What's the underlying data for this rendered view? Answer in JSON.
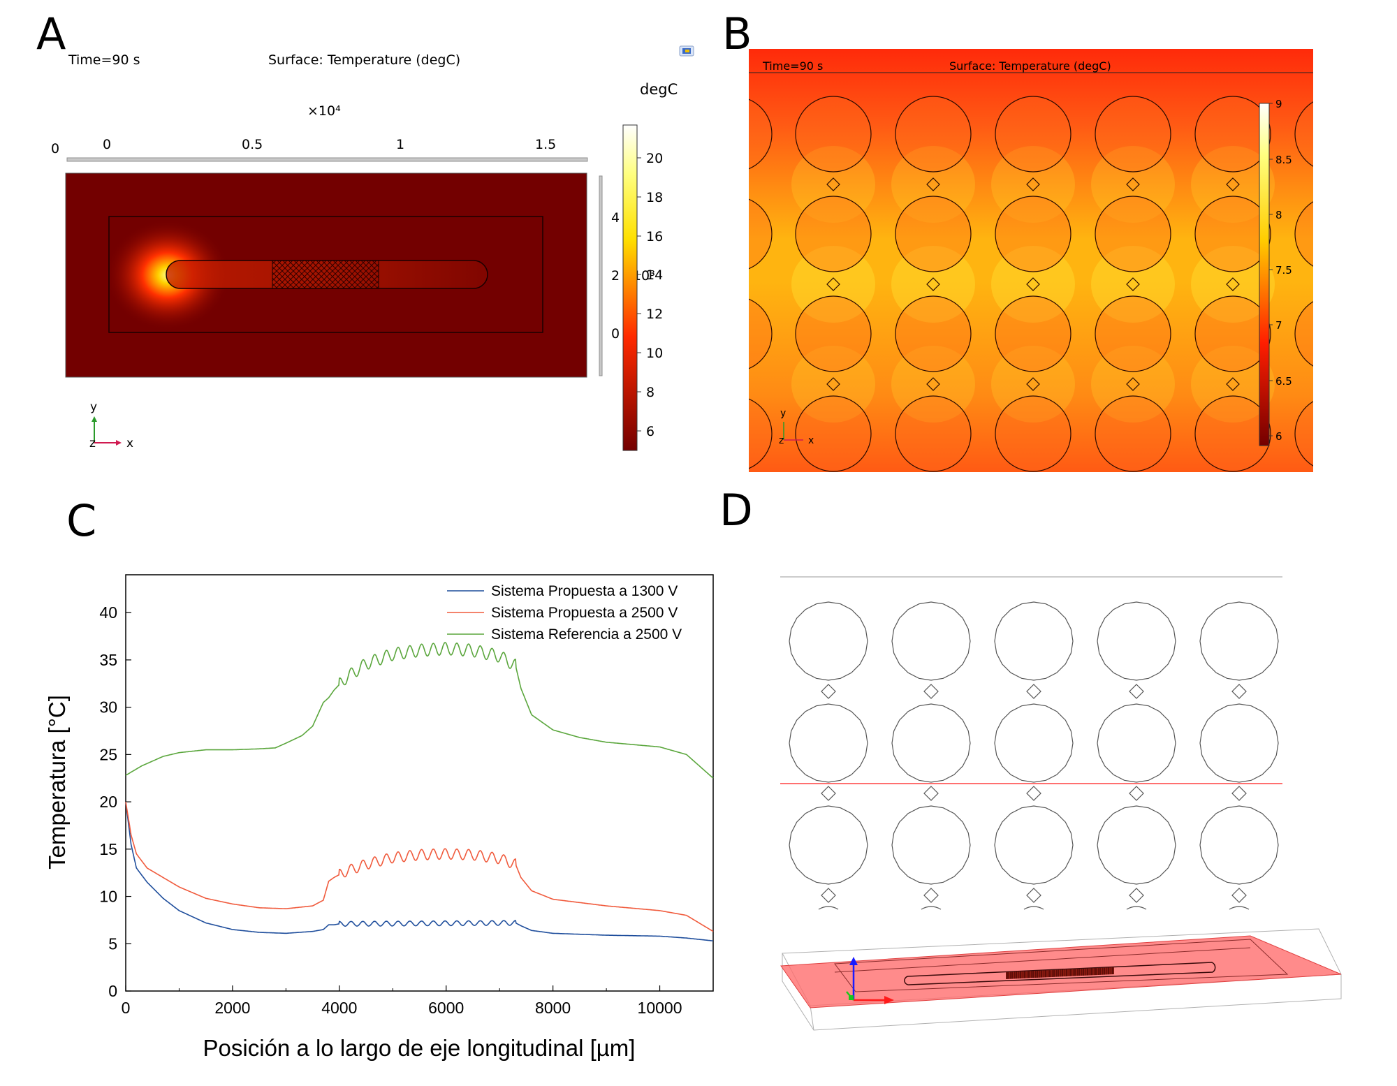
{
  "panels": {
    "a": "A",
    "b": "B",
    "c": "C",
    "d": "D"
  },
  "colors": {
    "blue_series": "#1f4e9c",
    "red_series": "#f05a3c",
    "green_series": "#5aa63c",
    "panelA_bg": "#730000",
    "panelB_bg": "#ff5a14",
    "panelD_plane": "#ff6e6e"
  },
  "panelA": {
    "time_label": "Time=90 s",
    "surface_label": "Surface: Temperature (degC)",
    "unit_label": "degC",
    "x_multiplier": "×10⁴",
    "x_ticks": [
      "0",
      "0.5",
      "1",
      "1.5"
    ],
    "x_origin": "0",
    "y_ticks": [
      "4",
      "2",
      "0"
    ],
    "y_multiplier": "×10³",
    "colorbar_ticks": [
      "20",
      "18",
      "16",
      "14",
      "12",
      "10",
      "8",
      "6"
    ],
    "axis_y": "y",
    "axis_z": "z",
    "axis_x": "x"
  },
  "panelB": {
    "time_label": "Time=90 s",
    "surface_label": "Surface: Temperature (degC)",
    "colorbar_ticks": [
      "9",
      "8.5",
      "8",
      "7.5",
      "7",
      "6.5",
      "6"
    ],
    "axis_y": "y",
    "axis_z": "z",
    "axis_x": "x"
  },
  "chart_data": {
    "type": "line",
    "title": "",
    "xlabel": "Posición a lo largo de eje longitudinal [µm]",
    "ylabel": "Temperatura [°C]",
    "xlim": [
      0,
      11000
    ],
    "ylim": [
      0,
      44
    ],
    "x_ticks": [
      0,
      2000,
      4000,
      6000,
      8000,
      10000
    ],
    "y_ticks": [
      0,
      5,
      10,
      15,
      20,
      25,
      30,
      35,
      40
    ],
    "legend_position": "top-right",
    "grid": false,
    "series": [
      {
        "name": "Sistema Propuesta a 1300 V",
        "color": "#1f4e9c",
        "x": [
          0,
          100,
          200,
          400,
          700,
          1000,
          1500,
          2000,
          2500,
          3000,
          3500,
          3700,
          3800,
          3900,
          4000,
          7300,
          7400,
          7600,
          8000,
          9000,
          10000,
          10500,
          11000
        ],
        "y": [
          20,
          15.5,
          13,
          11.5,
          9.8,
          8.5,
          7.2,
          6.5,
          6.2,
          6.1,
          6.3,
          6.5,
          7.0,
          7.0,
          7.1,
          7.2,
          6.9,
          6.4,
          6.1,
          5.9,
          5.8,
          5.6,
          5.3
        ],
        "ripple": {
          "start": 4000,
          "end": 7300,
          "count": 15,
          "amplitude": 0.25
        }
      },
      {
        "name": "Sistema Propuesta a 2500 V",
        "color": "#f05a3c",
        "x": [
          0,
          100,
          200,
          400,
          700,
          1000,
          1500,
          2000,
          2500,
          3000,
          3500,
          3700,
          3800,
          3900,
          4100,
          4500,
          5000,
          5500,
          6000,
          6500,
          7000,
          7300,
          7400,
          7600,
          8000,
          9000,
          10000,
          10500,
          11000
        ],
        "y": [
          20,
          16.5,
          14.5,
          13,
          12,
          11,
          9.8,
          9.2,
          8.8,
          8.7,
          9.0,
          9.6,
          11.6,
          12.0,
          12.6,
          13.4,
          14.1,
          14.4,
          14.5,
          14.4,
          14.0,
          13.4,
          12.0,
          10.6,
          9.7,
          9.0,
          8.5,
          8.0,
          6.3
        ],
        "ripple": {
          "start": 4000,
          "end": 7300,
          "count": 15,
          "amplitude": 0.55
        }
      },
      {
        "name": "Sistema Referencia a 2500 V",
        "color": "#5aa63c",
        "x": [
          0,
          300,
          700,
          1000,
          1500,
          2000,
          2500,
          2800,
          3000,
          3300,
          3500,
          3700,
          3800,
          3900,
          4100,
          4500,
          5000,
          5500,
          6000,
          6500,
          7000,
          7300,
          7400,
          7600,
          8000,
          8500,
          9000,
          10000,
          10500,
          11000
        ],
        "y": [
          22.8,
          23.8,
          24.8,
          25.2,
          25.5,
          25.5,
          25.6,
          25.7,
          26.2,
          27.0,
          28.0,
          30.5,
          31.0,
          31.8,
          33.0,
          34.6,
          35.6,
          36.0,
          36.2,
          36.0,
          35.4,
          34.4,
          32.0,
          29.2,
          27.6,
          26.8,
          26.3,
          25.8,
          25.0,
          22.5
        ],
        "ripple": {
          "start": 4000,
          "end": 7300,
          "count": 15,
          "amplitude": 0.65
        }
      }
    ]
  }
}
